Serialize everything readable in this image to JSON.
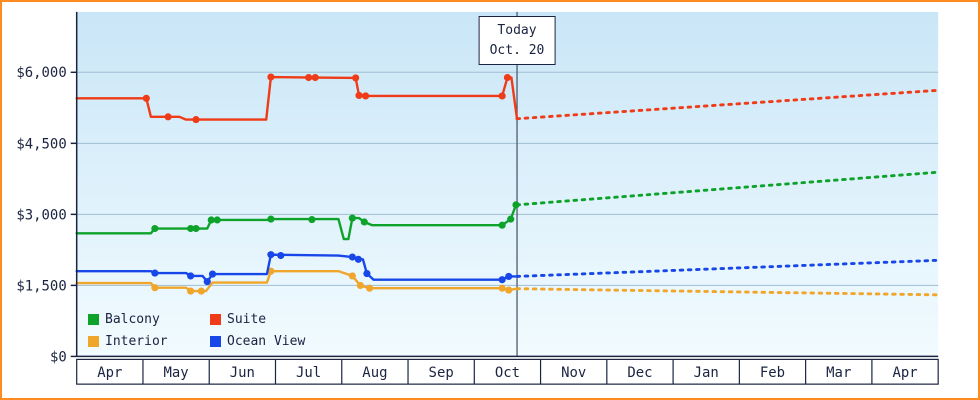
{
  "chart_data": {
    "type": "line",
    "title": "",
    "x_note": "x values are month offsets from Apr 1 across 13 month columns (Apr through Apr); solid = price history, dotted = projection after today",
    "y_unit": "USD",
    "y_range": [
      0,
      6000
    ],
    "grid": true,
    "legend_position": "bottom-left-inside",
    "y_ticks": [
      {
        "value": 0,
        "label": "$0"
      },
      {
        "value": 1500,
        "label": "$1,500"
      },
      {
        "value": 3000,
        "label": "$3,000"
      },
      {
        "value": 4500,
        "label": "$4,500"
      },
      {
        "value": 6000,
        "label": "$6,000"
      }
    ],
    "months": [
      "Apr",
      "May",
      "Jun",
      "Jul",
      "Aug",
      "Sep",
      "Oct",
      "Nov",
      "Dec",
      "Jan",
      "Feb",
      "Mar",
      "Apr"
    ],
    "today": {
      "x": 6.645,
      "line1": "Today",
      "line2": "Oct. 20"
    },
    "legend": [
      "Balcony",
      "Suite",
      "Interior",
      "Ocean View"
    ],
    "series": [
      {
        "name": "Interior",
        "color": "#f0a62a",
        "history": [
          [
            0,
            1550
          ],
          [
            1.12,
            1550
          ],
          [
            1.18,
            1450
          ],
          [
            1.65,
            1450
          ],
          [
            1.72,
            1380
          ],
          [
            1.95,
            1380
          ],
          [
            2.05,
            1560
          ],
          [
            2.87,
            1560
          ],
          [
            2.93,
            1800
          ],
          [
            3.95,
            1800
          ],
          [
            4.16,
            1700
          ],
          [
            4.28,
            1500
          ],
          [
            4.42,
            1440
          ],
          [
            6.42,
            1440
          ],
          [
            6.52,
            1400
          ],
          [
            6.645,
            1430
          ]
        ],
        "markers": [
          [
            1.18,
            1450
          ],
          [
            1.72,
            1380
          ],
          [
            1.88,
            1380
          ],
          [
            2.93,
            1800
          ],
          [
            4.16,
            1700
          ],
          [
            4.28,
            1500
          ],
          [
            4.42,
            1440
          ],
          [
            6.42,
            1440
          ],
          [
            6.52,
            1400
          ]
        ],
        "forecast": [
          [
            6.645,
            1430
          ],
          [
            13,
            1300
          ]
        ]
      },
      {
        "name": "Ocean View",
        "color": "#1747e8",
        "history": [
          [
            0,
            1800
          ],
          [
            1.12,
            1800
          ],
          [
            1.18,
            1760
          ],
          [
            1.65,
            1760
          ],
          [
            1.72,
            1700
          ],
          [
            1.9,
            1700
          ],
          [
            1.97,
            1580
          ],
          [
            2.05,
            1740
          ],
          [
            2.87,
            1740
          ],
          [
            2.93,
            2150
          ],
          [
            3.95,
            2130
          ],
          [
            4.16,
            2100
          ],
          [
            4.25,
            2050
          ],
          [
            4.32,
            2050
          ],
          [
            4.38,
            1750
          ],
          [
            4.48,
            1620
          ],
          [
            6.42,
            1620
          ],
          [
            6.52,
            1690
          ],
          [
            6.645,
            1690
          ]
        ],
        "markers": [
          [
            1.18,
            1760
          ],
          [
            1.72,
            1700
          ],
          [
            1.97,
            1580
          ],
          [
            2.05,
            1740
          ],
          [
            2.93,
            2150
          ],
          [
            3.08,
            2130
          ],
          [
            4.16,
            2100
          ],
          [
            4.25,
            2050
          ],
          [
            4.38,
            1750
          ],
          [
            6.42,
            1620
          ],
          [
            6.52,
            1690
          ]
        ],
        "forecast": [
          [
            6.645,
            1690
          ],
          [
            13,
            2030
          ]
        ]
      },
      {
        "name": "Balcony",
        "color": "#0da32a",
        "history": [
          [
            0,
            2600
          ],
          [
            1.12,
            2600
          ],
          [
            1.18,
            2700
          ],
          [
            1.97,
            2700
          ],
          [
            2.03,
            2880
          ],
          [
            2.87,
            2880
          ],
          [
            2.93,
            2900
          ],
          [
            3.95,
            2900
          ],
          [
            4.03,
            2480
          ],
          [
            4.1,
            2480
          ],
          [
            4.16,
            2920
          ],
          [
            4.26,
            2920
          ],
          [
            4.34,
            2840
          ],
          [
            4.46,
            2770
          ],
          [
            6.42,
            2770
          ],
          [
            6.55,
            2900
          ],
          [
            6.63,
            3200
          ],
          [
            6.645,
            3200
          ]
        ],
        "markers": [
          [
            1.18,
            2700
          ],
          [
            1.72,
            2700
          ],
          [
            1.8,
            2700
          ],
          [
            2.03,
            2880
          ],
          [
            2.12,
            2880
          ],
          [
            2.93,
            2900
          ],
          [
            3.55,
            2890
          ],
          [
            4.16,
            2920
          ],
          [
            4.34,
            2840
          ],
          [
            6.42,
            2770
          ],
          [
            6.55,
            2900
          ],
          [
            6.63,
            3200
          ]
        ],
        "forecast": [
          [
            6.645,
            3200
          ],
          [
            13,
            3890
          ]
        ]
      },
      {
        "name": "Suite",
        "color": "#ef3b17",
        "history": [
          [
            0,
            5450
          ],
          [
            1.05,
            5450
          ],
          [
            1.12,
            5060
          ],
          [
            1.55,
            5060
          ],
          [
            1.65,
            5000
          ],
          [
            2.86,
            5000
          ],
          [
            2.93,
            5900
          ],
          [
            3.6,
            5890
          ],
          [
            4.21,
            5880
          ],
          [
            4.26,
            5510
          ],
          [
            4.36,
            5500
          ],
          [
            6.42,
            5500
          ],
          [
            6.5,
            5890
          ],
          [
            6.56,
            5890
          ],
          [
            6.645,
            5020
          ]
        ],
        "markers": [
          [
            1.05,
            5450
          ],
          [
            1.38,
            5060
          ],
          [
            1.8,
            5000
          ],
          [
            2.93,
            5900
          ],
          [
            3.5,
            5890
          ],
          [
            3.6,
            5890
          ],
          [
            4.21,
            5880
          ],
          [
            4.26,
            5510
          ],
          [
            4.36,
            5500
          ],
          [
            6.42,
            5500
          ],
          [
            6.5,
            5890
          ]
        ],
        "forecast": [
          [
            6.645,
            5020
          ],
          [
            13,
            5620
          ]
        ]
      }
    ],
    "style": {
      "frame_border": "#ff8c21",
      "ink": "#1a2340",
      "grid_line": "#9fbdd3",
      "bg_top": "#c9e6f7",
      "bg_bottom": "#f2fbff",
      "today_line": "#4e5b6e"
    }
  }
}
